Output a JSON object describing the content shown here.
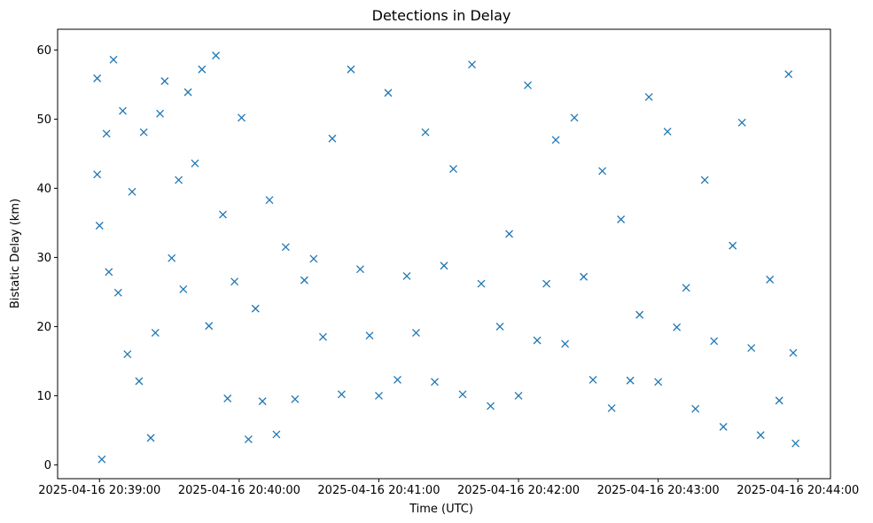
{
  "chart_data": {
    "type": "scatter",
    "title": "Detections in Delay",
    "xlabel": "Time (UTC)",
    "ylabel": "Bistatic Delay (km)",
    "x_ticks": [
      "2025-04-16 20:39:00",
      "2025-04-16 20:40:00",
      "2025-04-16 20:41:00",
      "2025-04-16 20:42:00",
      "2025-04-16 20:43:00",
      "2025-04-16 20:44:00"
    ],
    "y_ticks": [
      "0",
      "10",
      "20",
      "30",
      "40",
      "50",
      "60"
    ],
    "xlim": [
      "2025-04-16 20:38:42",
      "2025-04-16 20:44:14"
    ],
    "ylim": [
      -2,
      63
    ],
    "grid": false,
    "marker": "x",
    "color": "#1f77b4",
    "series": [
      {
        "values_note": "",
        "x": [
          "20:38:59",
          "20:38:59",
          "20:39:00",
          "20:39:01",
          "20:39:03",
          "20:39:04",
          "20:39:06",
          "20:39:08",
          "20:39:10",
          "20:39:12",
          "20:39:14",
          "20:39:17",
          "20:39:19",
          "20:39:22",
          "20:39:24",
          "20:39:26",
          "20:39:28",
          "20:39:31",
          "20:39:34",
          "20:39:36",
          "20:39:38",
          "20:39:41",
          "20:39:44",
          "20:39:47",
          "20:39:50",
          "20:39:53",
          "20:39:55",
          "20:39:58",
          "20:40:01",
          "20:40:04",
          "20:40:07",
          "20:40:10",
          "20:40:13",
          "20:40:16",
          "20:40:20",
          "20:40:24",
          "20:40:28",
          "20:40:32",
          "20:40:36",
          "20:40:40",
          "20:40:44",
          "20:40:48",
          "20:40:52",
          "20:40:56",
          "20:41:00",
          "20:41:04",
          "20:41:08",
          "20:41:12",
          "20:41:16",
          "20:41:20",
          "20:41:24",
          "20:41:28",
          "20:41:32",
          "20:41:36",
          "20:41:40",
          "20:41:44",
          "20:41:48",
          "20:41:52",
          "20:41:56",
          "20:42:00",
          "20:42:04",
          "20:42:08",
          "20:42:12",
          "20:42:16",
          "20:42:20",
          "20:42:24",
          "20:42:28",
          "20:42:32",
          "20:42:36",
          "20:42:40",
          "20:42:44",
          "20:42:48",
          "20:42:52",
          "20:42:56",
          "20:43:00",
          "20:43:04",
          "20:43:08",
          "20:43:12",
          "20:43:16",
          "20:43:20",
          "20:43:24",
          "20:43:28",
          "20:43:32",
          "20:43:36",
          "20:43:40",
          "20:43:44",
          "20:43:48",
          "20:43:52",
          "20:43:56",
          "20:43:58",
          "20:43:59"
        ],
        "y": [
          55.9,
          42,
          34.6,
          0.8,
          47.9,
          27.9,
          58.6,
          24.9,
          51.2,
          16,
          39.5,
          12.1,
          48.1,
          3.9,
          19.1,
          50.8,
          55.5,
          29.9,
          41.2,
          25.4,
          53.9,
          43.6,
          57.2,
          20.1,
          59.2,
          36.2,
          9.6,
          26.5,
          50.2,
          3.7,
          22.6,
          9.2,
          38.3,
          4.4,
          31.5,
          9.5,
          26.7,
          29.8,
          18.5,
          47.2,
          10.2,
          57.2,
          28.3,
          18.7,
          10,
          53.8,
          12.3,
          27.3,
          19.1,
          48.1,
          12,
          28.8,
          42.8,
          10.2,
          57.9,
          26.2,
          8.5,
          20,
          33.4,
          10,
          54.9,
          18,
          26.2,
          47,
          17.5,
          50.2,
          27.2,
          12.3,
          42.5,
          8.2,
          35.5,
          12.2,
          21.7,
          53.2,
          12,
          48.2,
          19.9,
          25.6,
          8.1,
          41.2,
          17.9,
          5.5,
          31.7,
          49.5,
          16.9,
          4.3,
          26.8,
          9.3,
          56.5,
          16.2,
          3.1
        ]
      }
    ]
  }
}
